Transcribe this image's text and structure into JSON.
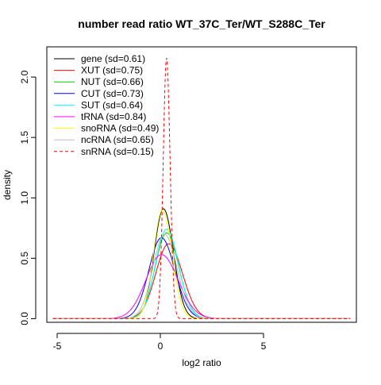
{
  "chart_data": {
    "type": "line",
    "title": "number read ratio WT_37C_Ter/WT_S288C_Ter",
    "xlabel": "log2 ratio",
    "ylabel": "density",
    "xlim": [
      -5.5,
      9.5
    ],
    "ylim": [
      -0.03,
      2.25
    ],
    "x_ticks": [
      -5,
      0,
      5
    ],
    "x_tick_labels": [
      "-5",
      "0",
      "5"
    ],
    "y_ticks": [
      0.0,
      0.5,
      1.0,
      1.5,
      2.0
    ],
    "y_tick_labels": [
      "0.0",
      "0.5",
      "1.0",
      "1.5",
      "2.0"
    ],
    "grid": false,
    "legend_position": "top-left",
    "series": [
      {
        "name": "gene (sd=0.61)",
        "color": "#000000",
        "dash": "solid",
        "mean": 0.15,
        "sd": 0.45,
        "peak": 0.91
      },
      {
        "name": "XUT (sd=0.75)",
        "color": "#ff0000",
        "dash": "solid",
        "mean": 0.4,
        "sd": 0.62,
        "peak": 0.62
      },
      {
        "name": "NUT (sd=0.66)",
        "color": "#00cd00",
        "dash": "solid",
        "mean": 0.3,
        "sd": 0.55,
        "peak": 0.71
      },
      {
        "name": "CUT (sd=0.73)",
        "color": "#0000ff",
        "dash": "solid",
        "mean": 0.05,
        "sd": 0.6,
        "peak": 0.67
      },
      {
        "name": "SUT (sd=0.64)",
        "color": "#00ffff",
        "dash": "solid",
        "mean": 0.3,
        "sd": 0.54,
        "peak": 0.74
      },
      {
        "name": "tRNA (sd=0.84)",
        "color": "#ff00ff",
        "dash": "solid",
        "mean": 0.05,
        "sd": 0.75,
        "peak": 0.53
      },
      {
        "name": "snoRNA (sd=0.49)",
        "color": "#ffff00",
        "dash": "solid",
        "mean": 0.1,
        "sd": 0.43,
        "peak": 0.9
      },
      {
        "name": "ncRNA (sd=0.65)",
        "color": "#bebebe",
        "dash": "solid",
        "mean": 0.2,
        "sd": 0.56,
        "peak": 0.7
      },
      {
        "name": "snRNA (sd=0.15)",
        "color": "#ff0000",
        "dash": "dashed",
        "mean": 0.3,
        "sd": 0.16,
        "peak": 2.16
      }
    ]
  }
}
